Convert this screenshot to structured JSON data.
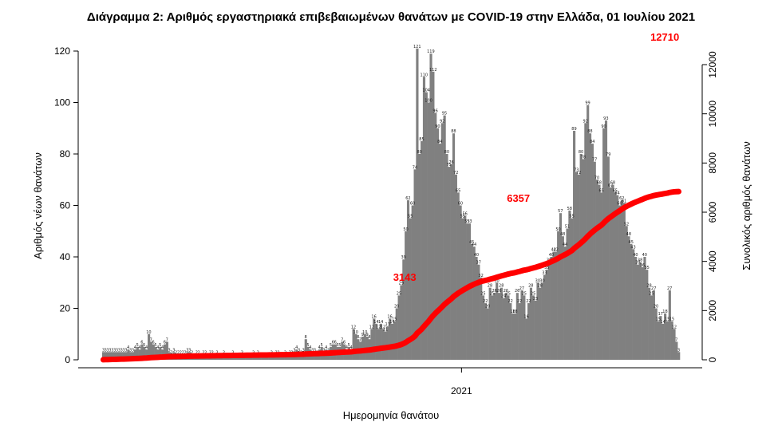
{
  "chart_data": {
    "type": "bar",
    "title": "Διάγραμμα 2: Αριθμός εργαστηριακά επιβεβαιωμένων θανάτων με COVID-19 στην Ελλάδα, 01 Ιουλίου 2021",
    "xlabel": "Ημερομηνία θανάτου",
    "ylabel": "Αριθμός νέων θανάτων",
    "y2label": "Συνολικός αριθμός θανάτων",
    "ylim": [
      0,
      120
    ],
    "y2lim": [
      0,
      12000
    ],
    "y_ticks": [
      0,
      20,
      40,
      60,
      80,
      100,
      120
    ],
    "y2_ticks": [
      0,
      2000,
      4000,
      6000,
      8000,
      10000,
      12000
    ],
    "x_ticks": [
      {
        "label": "2021",
        "day": 158
      }
    ],
    "num_days": 250,
    "series": [
      {
        "name": "",
        "type": "bar",
        "color": "#808080",
        "values": [
          3,
          3,
          3,
          3,
          3,
          3,
          3,
          3,
          3,
          3,
          3,
          4,
          3,
          3,
          4,
          5,
          4,
          6,
          5,
          4,
          10,
          7,
          6,
          5,
          4,
          5,
          4,
          6,
          7,
          3,
          2,
          3,
          2,
          2,
          2,
          2,
          2,
          3,
          3,
          2,
          1,
          2,
          2,
          1,
          2,
          2,
          1,
          2,
          2,
          1,
          2,
          1,
          1,
          2,
          1,
          1,
          1,
          2,
          1,
          1,
          1,
          2,
          1,
          1,
          1,
          1,
          2,
          1,
          2,
          1,
          1,
          1,
          1,
          1,
          2,
          1,
          2,
          2,
          1,
          1,
          2,
          1,
          2,
          2,
          3,
          4,
          3,
          2,
          3,
          8,
          5,
          4,
          3,
          3,
          2,
          4,
          5,
          3,
          4,
          3,
          5,
          6,
          6,
          5,
          5,
          7,
          6,
          4,
          5,
          4,
          12,
          10,
          8,
          7,
          9,
          10,
          9,
          8,
          12,
          16,
          14,
          12,
          14,
          12,
          11,
          13,
          16,
          14,
          15,
          20,
          25,
          29,
          39,
          50,
          62,
          55,
          60,
          74,
          121,
          80,
          85,
          110,
          104,
          100,
          119,
          112,
          96,
          90,
          84,
          92,
          95,
          80,
          75,
          76,
          88,
          72,
          65,
          60,
          55,
          56,
          53,
          53,
          45,
          44,
          40,
          37,
          32,
          25,
          22,
          20,
          28,
          25,
          26,
          30,
          26,
          28,
          24,
          26,
          25,
          22,
          18,
          18,
          26,
          22,
          27,
          25,
          16,
          22,
          28,
          25,
          23,
          30,
          28,
          30,
          33,
          35,
          38,
          40,
          42,
          42,
          50,
          57,
          48,
          44,
          51,
          58,
          55,
          89,
          73,
          72,
          80,
          78,
          92,
          99,
          88,
          84,
          77,
          70,
          68,
          65,
          90,
          93,
          79,
          67,
          68,
          65,
          64,
          60,
          62,
          61,
          52,
          48,
          45,
          43,
          40,
          37,
          38,
          36,
          40,
          35,
          28,
          25,
          27,
          20,
          15,
          17,
          14,
          18,
          15,
          27,
          15,
          12,
          7,
          3
        ]
      },
      {
        "name": "",
        "type": "line",
        "axis": "y2",
        "color": "#ff0000",
        "annotations": [
          {
            "label": "3143",
            "day": 139,
            "value": 3143
          },
          {
            "label": "6357",
            "day": 189,
            "value": 6357
          },
          {
            "label": "12710",
            "day": 249,
            "value": 12710
          }
        ]
      }
    ],
    "grid": false,
    "legend": "none"
  }
}
